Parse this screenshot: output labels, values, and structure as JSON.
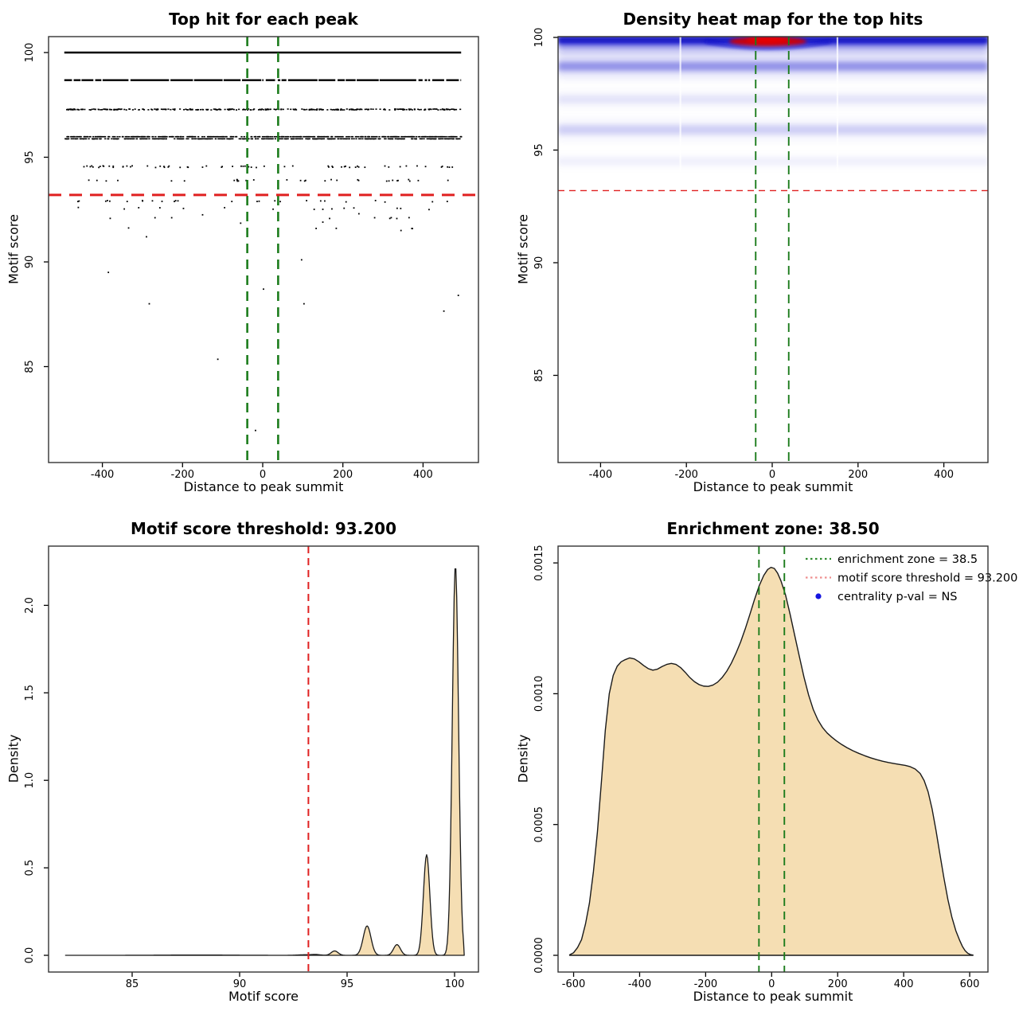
{
  "figure_bg": "#ffffff",
  "colors": {
    "foreground": "#000000",
    "box_border": "#333333",
    "red_dashed_line": "#e02020",
    "green_dashed_line": "#1c7c1c",
    "legend_green": "#2f8b2f",
    "legend_red": "#ef8f8f",
    "legend_blue_dot": "#1515e0",
    "density_fill": "#f5deb3",
    "density_stroke": "#1a1a1a",
    "heat_blue": "#2222d0",
    "heat_red": "#d40000"
  },
  "motif_score_threshold": 93.2,
  "enrichment_zone_halfwidth": 38.5,
  "chart_data": [
    {
      "type": "scatter",
      "panel": "top-left",
      "title": "Top hit for each peak",
      "xlabel": "Distance to peak summit",
      "ylabel": "Motif score",
      "x_ticks": [
        -400,
        -200,
        0,
        200,
        400
      ],
      "y_ticks": [
        {
          "v": 100,
          "label": "100"
        },
        {
          "v": 95,
          "label": "95"
        },
        {
          "v": 90,
          "label": "90"
        },
        {
          "v": 85,
          "label": "85"
        }
      ],
      "xlim": [
        -535,
        535
      ],
      "ylim": [
        81.4,
        100.8
      ],
      "threshold_line": {
        "value": 93.2,
        "orientation": "horizontal",
        "color_key": "red_dashed_line"
      },
      "enrichment_zone": {
        "values": [
          -38.5,
          38.5
        ],
        "orientation": "vertical",
        "color_key": "green_dashed_line"
      },
      "bands": [
        {
          "score": 100.0,
          "style": "solid",
          "extent": 495,
          "count": 600
        },
        {
          "score": 98.68,
          "style": "solid-gaps",
          "extent": 495,
          "count": 560,
          "gaps": 26
        },
        {
          "score": 97.28,
          "style": "dense",
          "extent": 495,
          "count": 300
        },
        {
          "score": 95.93,
          "style": "dense-double",
          "extent": 495,
          "count": 760
        },
        {
          "score": 94.55,
          "style": "sparse",
          "extent": 492,
          "count": 64
        },
        {
          "score": 93.9,
          "style": "sparse",
          "extent": 490,
          "count": 32
        },
        {
          "score": 92.9,
          "style": "sparse",
          "extent": 470,
          "count": 26
        },
        {
          "score": 92.55,
          "style": "sparse",
          "extent": 430,
          "count": 13
        },
        {
          "score": 92.1,
          "style": "sparse",
          "extent": 420,
          "count": 9
        },
        {
          "score": 91.6,
          "style": "sparse",
          "extent": 380,
          "count": 5
        }
      ],
      "outliers": [
        [
          -385,
          89.5
        ],
        [
          -283,
          88.0
        ],
        [
          -112,
          85.35
        ],
        [
          -18,
          81.95
        ],
        [
          2,
          88.7
        ],
        [
          97,
          90.1
        ],
        [
          103,
          88.0
        ],
        [
          452,
          87.65
        ],
        [
          488,
          88.4
        ],
        [
          -290,
          91.2
        ],
        [
          345,
          91.5
        ],
        [
          150,
          91.9
        ],
        [
          -55,
          91.85
        ],
        [
          240,
          92.3
        ],
        [
          -150,
          92.25
        ],
        [
          415,
          92.5
        ],
        [
          -460,
          92.6
        ]
      ]
    },
    {
      "type": "heatmap",
      "panel": "top-right",
      "title": "Density heat map for the top hits",
      "xlabel": "Distance to peak summit",
      "ylabel": "Motif score",
      "x_ticks": [
        -400,
        -200,
        0,
        200,
        400
      ],
      "y_ticks": [
        {
          "v": 100,
          "label": "100"
        },
        {
          "v": 95,
          "label": "95"
        },
        {
          "v": 90,
          "label": "90"
        },
        {
          "v": 85,
          "label": "85"
        }
      ],
      "xlim": [
        -500,
        500
      ],
      "ylim": [
        81.1,
        100.05
      ],
      "threshold_line": {
        "value": 93.2,
        "orientation": "horizontal",
        "color_key": "red_dashed_line"
      },
      "enrichment_zone": {
        "values": [
          -38.5,
          38.5
        ],
        "orientation": "vertical",
        "color_key": "green_dashed_line"
      },
      "bands": [
        {
          "score": 99.85,
          "core_alpha": 0.95,
          "core_h": 10,
          "halo_alpha": 0.42,
          "halo_h": 27
        },
        {
          "score": 98.72,
          "core_alpha": 0.4,
          "core_h": 11,
          "halo_alpha": 0.16,
          "halo_h": 25
        },
        {
          "score": 97.25,
          "core_alpha": 0.09,
          "core_h": 10,
          "halo_alpha": 0.04,
          "halo_h": 20
        },
        {
          "score": 95.9,
          "core_alpha": 0.16,
          "core_h": 11,
          "halo_alpha": 0.07,
          "halo_h": 22
        },
        {
          "score": 94.5,
          "core_alpha": 0.05,
          "core_h": 9,
          "halo_alpha": 0.02,
          "halo_h": 16
        }
      ],
      "red_hotspot": {
        "x_center": -10,
        "x_halfwidth": 90,
        "score": 100.0
      },
      "white_seams_x": [
        -214,
        152
      ]
    },
    {
      "type": "area",
      "panel": "bottom-left",
      "title": "Motif score threshold: 93.200",
      "xlabel": "Motif score",
      "ylabel": "Density",
      "x_ticks": [
        85,
        90,
        95,
        100
      ],
      "y_ticks": [
        {
          "v": 0,
          "label": "0.0"
        },
        {
          "v": 0.5,
          "label": "0.5"
        },
        {
          "v": 1,
          "label": "1.0"
        },
        {
          "v": 1.5,
          "label": "1.5"
        },
        {
          "v": 2,
          "label": "2.0"
        }
      ],
      "xlim": [
        81.9,
        100.45
      ],
      "ylim": [
        0,
        2.33
      ],
      "threshold_line": {
        "value": 93.2,
        "orientation": "vertical",
        "color_key": "red_dashed_line"
      },
      "mixture_components": [
        {
          "mu": 100.04,
          "sigma": 0.145,
          "amp": 2.23
        },
        {
          "mu": 98.7,
          "sigma": 0.15,
          "amp": 0.575
        },
        {
          "mu": 97.32,
          "sigma": 0.16,
          "amp": 0.061
        },
        {
          "mu": 95.93,
          "sigma": 0.18,
          "amp": 0.168
        },
        {
          "mu": 94.42,
          "sigma": 0.16,
          "amp": 0.025
        },
        {
          "mu": 93.55,
          "sigma": 0.2,
          "amp": 0.0045
        },
        {
          "mu": 93.0,
          "sigma": 0.3,
          "amp": 0.003
        },
        {
          "mu": 88.0,
          "sigma": 1.5,
          "amp": 0.0018
        }
      ]
    },
    {
      "type": "area",
      "panel": "bottom-right",
      "title": "Enrichment zone: 38.50",
      "xlabel": "Distance to peak summit",
      "ylabel": "Density",
      "x_ticks": [
        -600,
        -400,
        -200,
        0,
        200,
        400,
        600
      ],
      "y_ticks": [
        {
          "v": 0,
          "label": "0.0000"
        },
        {
          "v": 0.0005,
          "label": "0.0005"
        },
        {
          "v": 0.001,
          "label": "0.0010"
        },
        {
          "v": 0.0015,
          "label": "0.0015"
        }
      ],
      "xlim": [
        -648,
        656
      ],
      "ylim": [
        0,
        0.00156
      ],
      "enrichment_zone": {
        "values": [
          -38.5,
          38.5
        ],
        "orientation": "vertical",
        "color_key": "green_dashed_line"
      },
      "legend": [
        {
          "marker": "dotted-line",
          "color_key": "legend_green",
          "label": "enrichment zone = 38.5"
        },
        {
          "marker": "dotted-line",
          "color_key": "legend_red",
          "label": "motif score threshold = 93.200"
        },
        {
          "marker": "dot",
          "color_key": "legend_blue_dot",
          "label": "centrality p-val = NS"
        }
      ],
      "points": [
        [
          -612,
          2e-06
        ],
        [
          -600,
          1e-05
        ],
        [
          -588,
          3e-05
        ],
        [
          -576,
          6e-05
        ],
        [
          -564,
          0.00012
        ],
        [
          -552,
          0.0002
        ],
        [
          -540,
          0.00032
        ],
        [
          -528,
          0.00047
        ],
        [
          -516,
          0.00066
        ],
        [
          -504,
          0.00086
        ],
        [
          -492,
          0.001
        ],
        [
          -480,
          0.00107
        ],
        [
          -468,
          0.001105
        ],
        [
          -456,
          0.001122
        ],
        [
          -444,
          0.00113
        ],
        [
          -430,
          0.001137
        ],
        [
          -416,
          0.001133
        ],
        [
          -402,
          0.001122
        ],
        [
          -388,
          0.001108
        ],
        [
          -374,
          0.001096
        ],
        [
          -360,
          0.00109
        ],
        [
          -346,
          0.001094
        ],
        [
          -332,
          0.001104
        ],
        [
          -318,
          0.001112
        ],
        [
          -304,
          0.001116
        ],
        [
          -290,
          0.001112
        ],
        [
          -276,
          0.0011
        ],
        [
          -262,
          0.001082
        ],
        [
          -248,
          0.001062
        ],
        [
          -234,
          0.001046
        ],
        [
          -220,
          0.001035
        ],
        [
          -206,
          0.001029
        ],
        [
          -192,
          0.001028
        ],
        [
          -178,
          0.001033
        ],
        [
          -164,
          0.001044
        ],
        [
          -150,
          0.001062
        ],
        [
          -136,
          0.001086
        ],
        [
          -122,
          0.001117
        ],
        [
          -108,
          0.001155
        ],
        [
          -94,
          0.001198
        ],
        [
          -80,
          0.001248
        ],
        [
          -66,
          0.001303
        ],
        [
          -52,
          0.00136
        ],
        [
          -38,
          0.001412
        ],
        [
          -24,
          0.001452
        ],
        [
          -12,
          0.001475
        ],
        [
          -2,
          0.001483
        ],
        [
          8,
          0.001479
        ],
        [
          18,
          0.001461
        ],
        [
          28,
          0.001432
        ],
        [
          42,
          0.001378
        ],
        [
          56,
          0.001303
        ],
        [
          70,
          0.001222
        ],
        [
          84,
          0.001142
        ],
        [
          98,
          0.001063
        ],
        [
          112,
          0.000995
        ],
        [
          126,
          0.00094
        ],
        [
          140,
          0.0009
        ],
        [
          154,
          0.000871
        ],
        [
          168,
          0.00085
        ],
        [
          182,
          0.000834
        ],
        [
          196,
          0.00082
        ],
        [
          212,
          0.000806
        ],
        [
          228,
          0.000794
        ],
        [
          246,
          0.000782
        ],
        [
          264,
          0.000772
        ],
        [
          282,
          0.000763
        ],
        [
          300,
          0.000755
        ],
        [
          318,
          0.000748
        ],
        [
          336,
          0.000742
        ],
        [
          354,
          0.000737
        ],
        [
          372,
          0.000733
        ],
        [
          390,
          0.000729
        ],
        [
          405,
          0.000726
        ],
        [
          420,
          0.000721
        ],
        [
          435,
          0.000712
        ],
        [
          450,
          0.000695
        ],
        [
          462,
          0.000668
        ],
        [
          474,
          0.000625
        ],
        [
          486,
          0.00056
        ],
        [
          498,
          0.000477
        ],
        [
          510,
          0.000385
        ],
        [
          522,
          0.000295
        ],
        [
          534,
          0.000213
        ],
        [
          546,
          0.000146
        ],
        [
          558,
          9.4e-05
        ],
        [
          570,
          5.6e-05
        ],
        [
          578,
          3.4e-05
        ],
        [
          586,
          1.8e-05
        ],
        [
          594,
          8e-06
        ],
        [
          602,
          3e-06
        ],
        [
          610,
          1e-06
        ]
      ]
    }
  ]
}
